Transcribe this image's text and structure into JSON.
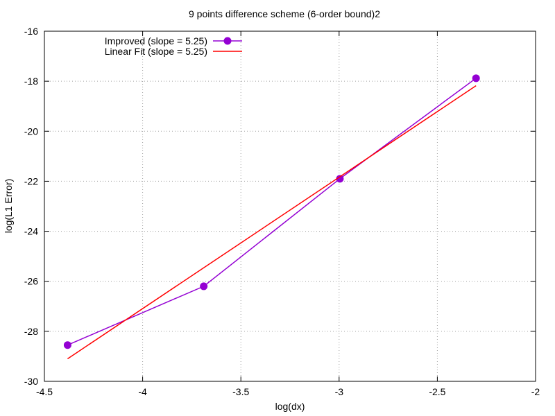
{
  "chart_data": {
    "type": "line",
    "title": "9 points difference scheme (6-order bound)2",
    "xlabel": "log(dx)",
    "ylabel": "log(L1 Error)",
    "xlim": [
      -4.5,
      -2
    ],
    "ylim": [
      -30,
      -16
    ],
    "x_ticks": [
      -4.5,
      -4,
      -3.5,
      -3,
      -2.5,
      -2
    ],
    "x_tick_labels": [
      "-4.5",
      "-4",
      "-3.5",
      "-3",
      "-2.5",
      "-2"
    ],
    "y_ticks": [
      -30,
      -28,
      -26,
      -24,
      -22,
      -20,
      -18,
      -16
    ],
    "y_tick_labels": [
      "-30",
      "-28",
      "-26",
      "-24",
      "-22",
      "-20",
      "-18",
      "-16"
    ],
    "grid": true,
    "legend_position": "top-left",
    "series": [
      {
        "name": "Improved (slope = 5.25)",
        "color": "#9400d3",
        "marker": "circle",
        "x": [
          -4.382,
          -3.689,
          -2.996,
          -2.303
        ],
        "y": [
          -28.55,
          -26.2,
          -21.9,
          -17.88
        ]
      },
      {
        "name": "Linear Fit (slope = 5.25)",
        "color": "#ff0000",
        "marker": "none",
        "x": [
          -4.382,
          -2.303
        ],
        "y": [
          -29.1,
          -18.18
        ]
      }
    ]
  }
}
